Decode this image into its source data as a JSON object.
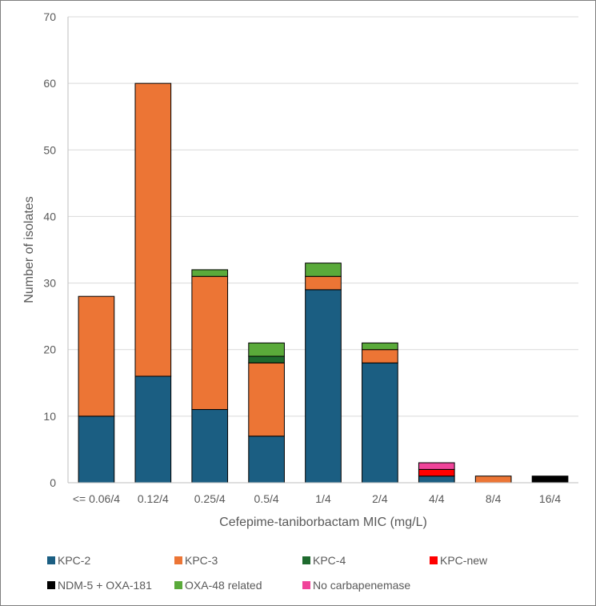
{
  "chart_data": {
    "type": "bar",
    "stacked": true,
    "xlabel": "Cefepime-taniborbactam MIC (mg/L)",
    "ylabel": "Number of isolates",
    "ylim": [
      0,
      70
    ],
    "yticks": [
      0,
      10,
      20,
      30,
      40,
      50,
      60,
      70
    ],
    "grid": true,
    "legend_position": "bottom",
    "categories": [
      "<= 0.06/4",
      "0.12/4",
      "0.25/4",
      "0.5/4",
      "1/4",
      "2/4",
      "4/4",
      "8/4",
      "16/4"
    ],
    "series": [
      {
        "name": "KPC-2",
        "color": "#1b5e82",
        "values": [
          10,
          16,
          11,
          7,
          29,
          18,
          1,
          0,
          0
        ]
      },
      {
        "name": "KPC-3",
        "color": "#ec7535",
        "values": [
          18,
          44,
          20,
          11,
          2,
          2,
          0,
          1,
          0
        ]
      },
      {
        "name": "KPC-4",
        "color": "#1e6a2e",
        "values": [
          0,
          0,
          0,
          1,
          0,
          0,
          0,
          0,
          0
        ]
      },
      {
        "name": "KPC-new",
        "color": "#ff0000",
        "values": [
          0,
          0,
          0,
          0,
          0,
          0,
          1,
          0,
          0
        ]
      },
      {
        "name": "NDM-5 + OXA-181",
        "color": "#000000",
        "values": [
          0,
          0,
          0,
          0,
          0,
          0,
          0,
          0,
          1
        ]
      },
      {
        "name": "OXA-48 related",
        "color": "#5aaa3a",
        "values": [
          0,
          0,
          1,
          2,
          2,
          1,
          0,
          0,
          0
        ]
      },
      {
        "name": "No carbapenemase",
        "color": "#f0449a",
        "values": [
          0,
          0,
          0,
          0,
          0,
          0,
          1,
          0,
          0
        ]
      }
    ]
  }
}
